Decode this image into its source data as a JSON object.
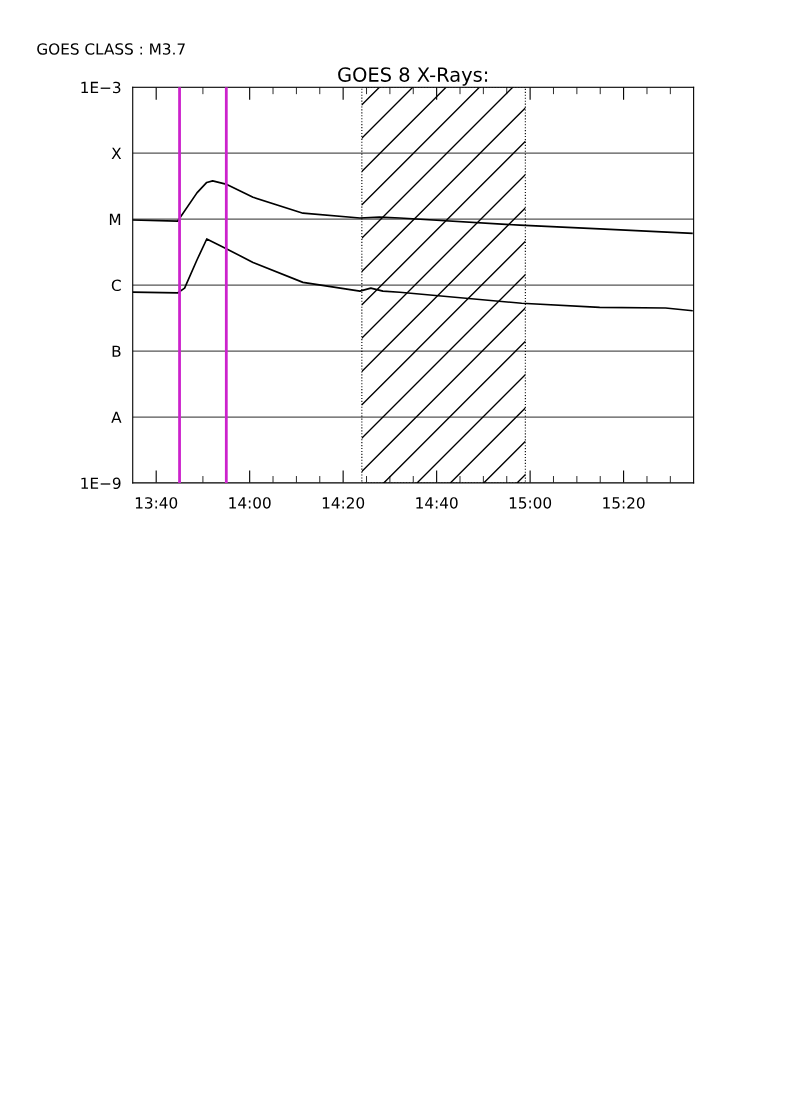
{
  "chart_data": {
    "type": "line",
    "title": "GOES 8 X-Rays:",
    "annotations": [
      "GOES CLASS : M3.7"
    ],
    "series": [
      {
        "color": "#000000",
        "x": [
          13.583,
          13.743,
          13.812,
          13.847,
          13.868,
          13.915,
          14.012,
          14.19,
          14.393,
          14.463,
          14.535,
          14.963,
          15.248,
          15.577
        ],
        "values": [
          9.7e-06,
          9.3e-06,
          2.5e-05,
          3.6e-05,
          3.8e-05,
          3.4e-05,
          2.15e-05,
          1.23e-05,
          1.04e-05,
          1.07e-05,
          1.04e-05,
          8.1e-06,
          7.1e-06,
          6.1e-06
        ]
      },
      {
        "color": "#000000",
        "x": [
          13.583,
          13.743,
          13.768,
          13.812,
          13.847,
          13.915,
          14.012,
          14.19,
          14.393,
          14.432,
          14.475,
          14.535,
          14.97,
          15.248,
          15.483,
          15.577
        ],
        "values": [
          7.8e-07,
          7.6e-07,
          9e-07,
          2.4e-06,
          5e-06,
          3.6e-06,
          2.2e-06,
          1.1e-06,
          8.1e-07,
          9e-07,
          8.1e-07,
          7.8e-07,
          5.3e-07,
          4.6e-07,
          4.5e-07,
          4.1e-07
        ]
      }
    ],
    "log": "y",
    "ylim": [
      1e-09,
      0.001
    ],
    "yticks": [
      {
        "value": 1e-09,
        "label": "1E−9"
      },
      {
        "value": 1e-08,
        "label": "A"
      },
      {
        "value": 1e-07,
        "label": "B"
      },
      {
        "value": 1e-06,
        "label": "C"
      },
      {
        "value": 1e-05,
        "label": "M"
      },
      {
        "value": 0.0001,
        "label": "X"
      },
      {
        "value": 0.001,
        "label": "1E−3"
      }
    ],
    "xlim": [
      13.583,
      15.583
    ],
    "xticks": [
      {
        "value": 13.6667,
        "label": "13:40"
      },
      {
        "value": 13.75,
        "label": null
      },
      {
        "value": 13.8333,
        "label": null
      },
      {
        "value": 13.9167,
        "label": null
      },
      {
        "value": 14.0,
        "label": "14:00"
      },
      {
        "value": 14.0833,
        "label": null
      },
      {
        "value": 14.1667,
        "label": null
      },
      {
        "value": 14.25,
        "label": null
      },
      {
        "value": 14.3333,
        "label": "14:20"
      },
      {
        "value": 14.4167,
        "label": null
      },
      {
        "value": 14.5,
        "label": null
      },
      {
        "value": 14.5833,
        "label": null
      },
      {
        "value": 14.6667,
        "label": "14:40"
      },
      {
        "value": 14.75,
        "label": null
      },
      {
        "value": 14.8333,
        "label": null
      },
      {
        "value": 14.9167,
        "label": null
      },
      {
        "value": 15.0,
        "label": "15:00"
      },
      {
        "value": 15.0833,
        "label": null
      },
      {
        "value": 15.1667,
        "label": null
      },
      {
        "value": 15.25,
        "label": null
      },
      {
        "value": 15.3333,
        "label": "15:20"
      },
      {
        "value": 15.4167,
        "label": null
      },
      {
        "value": 15.5,
        "label": null
      }
    ],
    "ref_lines": [
      {
        "axis": "x",
        "value": 13.75,
        "color": "#cc22cc",
        "line_style": "solid"
      },
      {
        "axis": "x",
        "value": 13.9167,
        "color": "#cc22cc",
        "line_style": "solid"
      }
    ],
    "bands": [
      {
        "axis": "x",
        "from": 14.4,
        "to": 14.983,
        "color": "#000000"
      }
    ],
    "grid": "y",
    "marker": "none",
    "line_style": "solid",
    "legend": false
  }
}
